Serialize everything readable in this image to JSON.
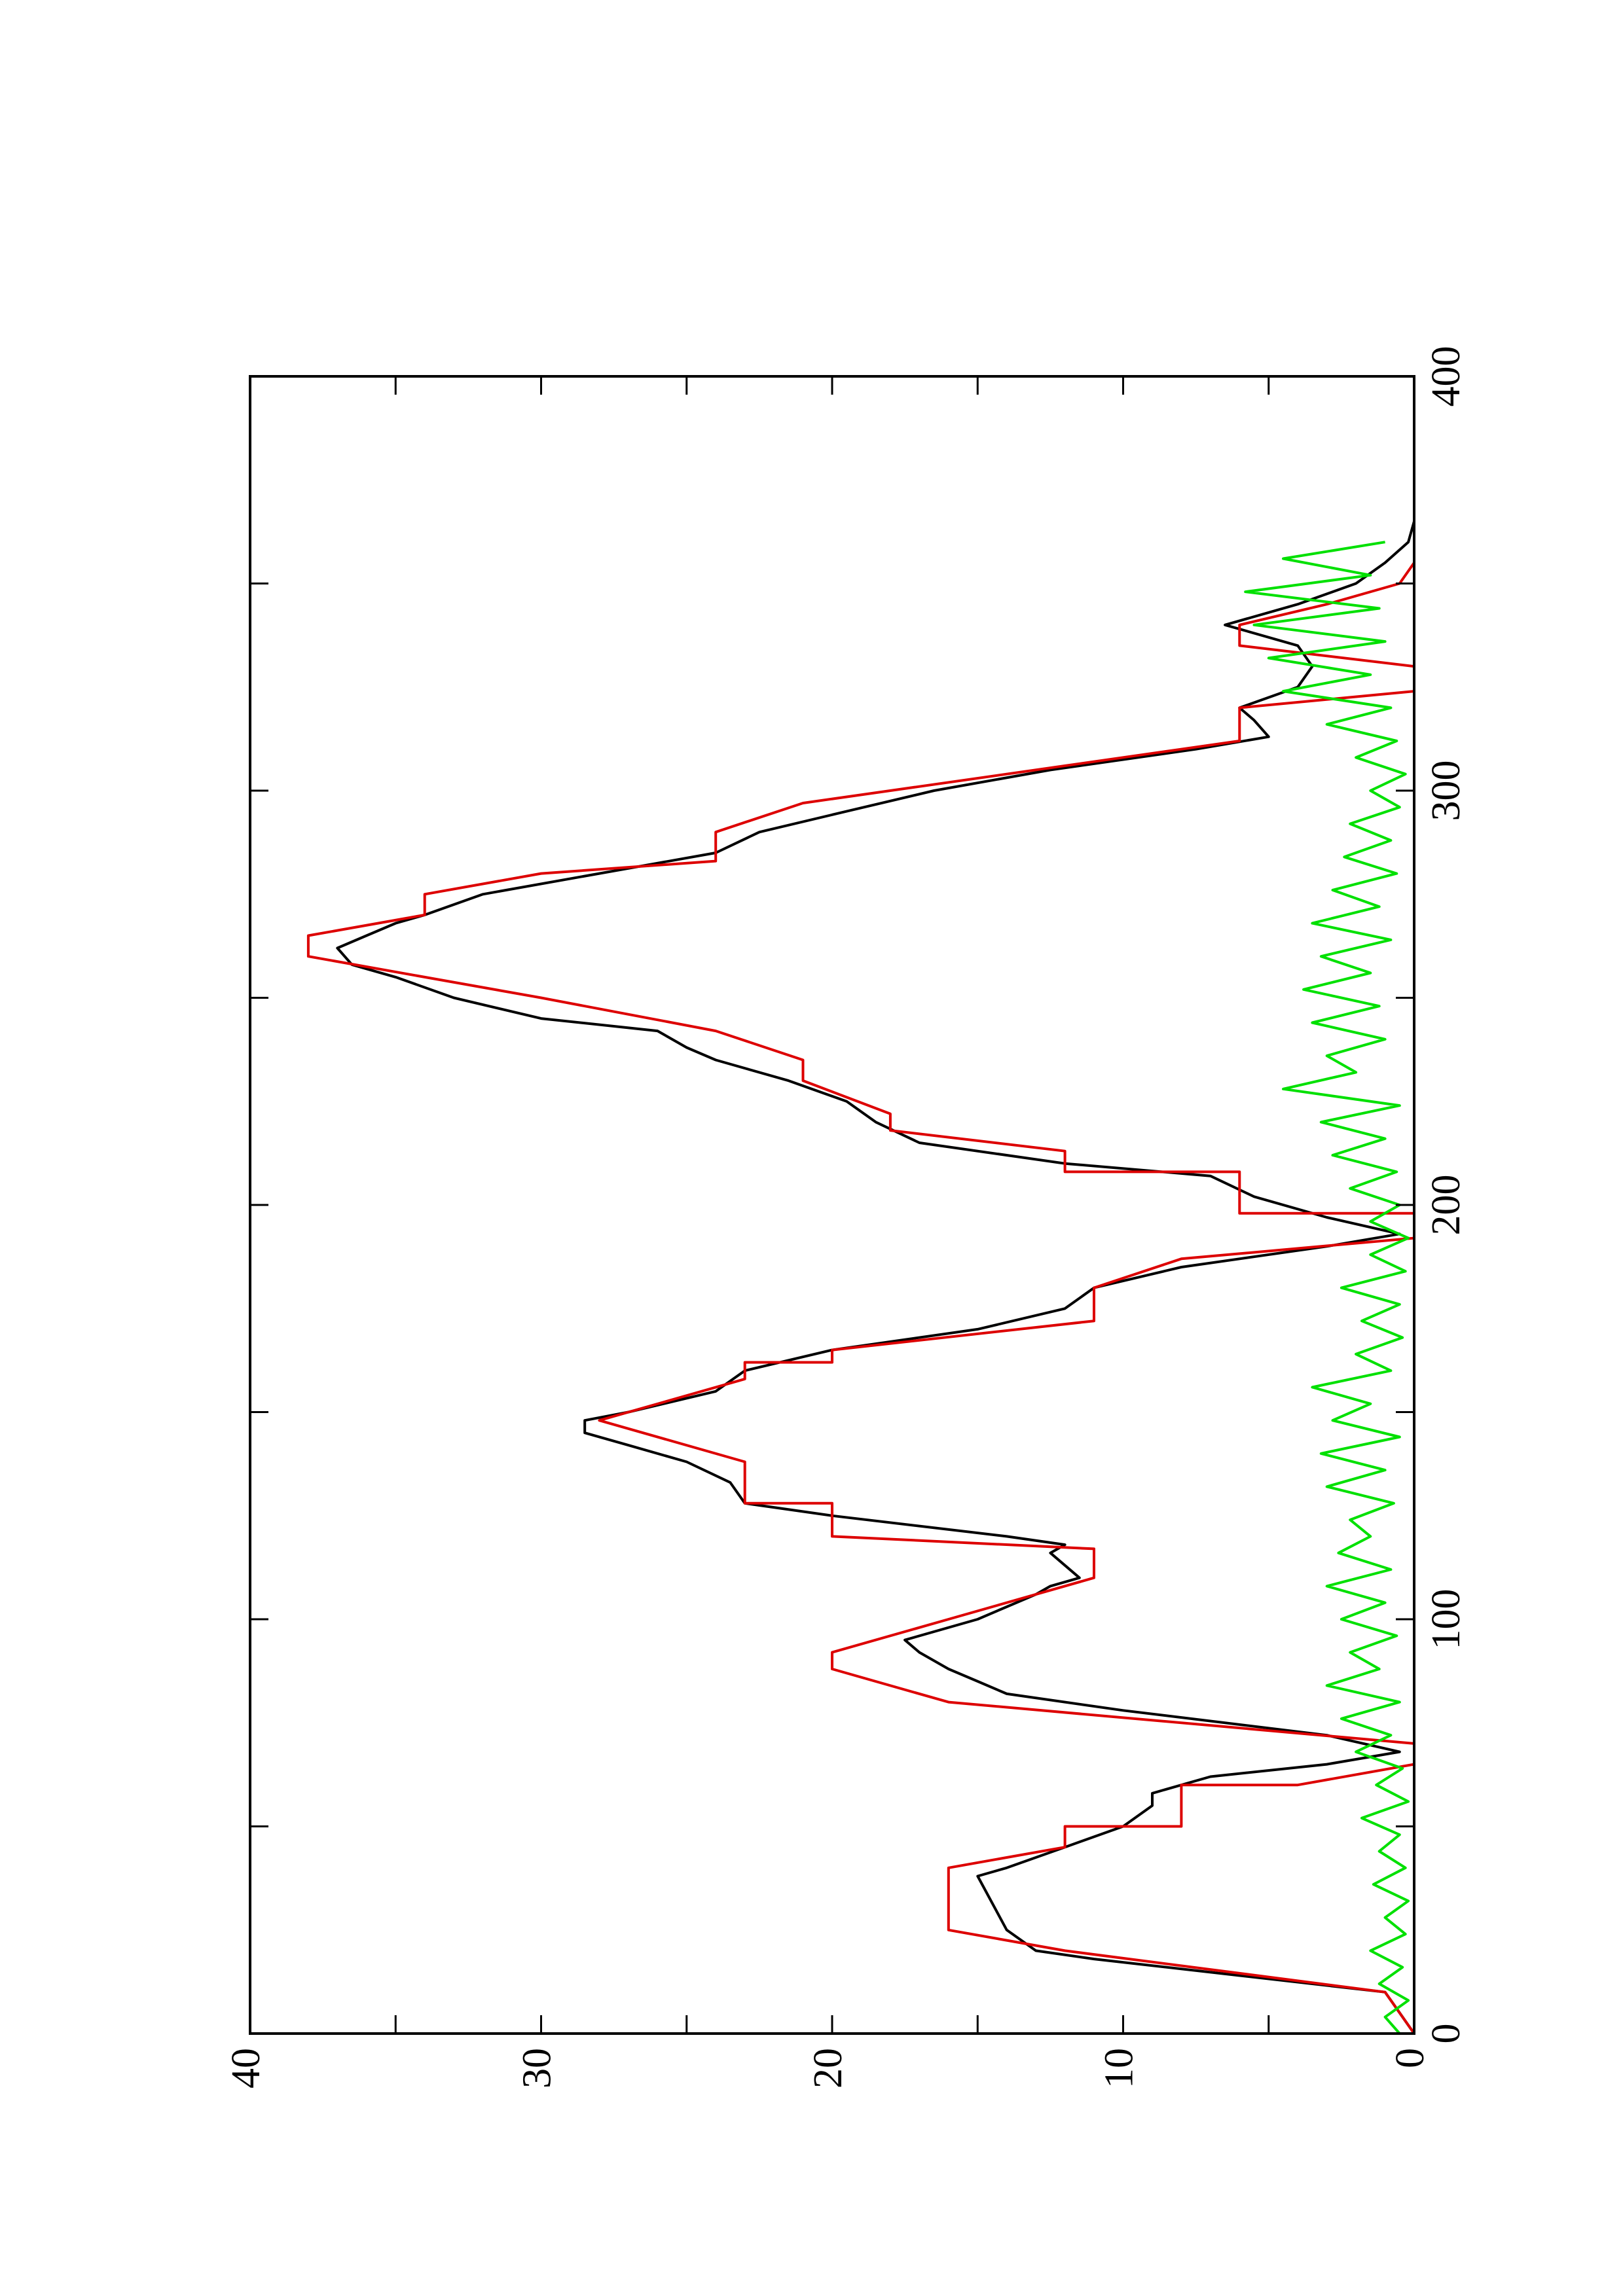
{
  "chart_data": {
    "type": "line",
    "orientation": "rotated 90 degrees counter-clockwise",
    "title": "",
    "xlabel": "",
    "ylabel": "",
    "xlim": [
      0,
      400
    ],
    "ylim": [
      0,
      40
    ],
    "x_ticks": [
      0,
      100,
      200,
      300,
      400
    ],
    "x_tick_labels": [
      "0",
      "100",
      "200",
      "300",
      "400"
    ],
    "y_ticks": [
      0,
      10,
      20,
      30,
      40
    ],
    "y_tick_labels": [
      "0",
      "10",
      "20",
      "30",
      "40"
    ],
    "grid": false,
    "legend": "none",
    "series": [
      {
        "color": "#000000",
        "x": [
          0,
          5,
          10,
          18,
          20,
          25,
          38,
          40,
          45,
          50,
          55,
          58,
          62,
          65,
          68,
          72,
          78,
          82,
          85,
          88,
          92,
          95,
          100,
          103,
          106,
          108,
          110,
          113,
          116,
          118,
          120,
          125,
          128,
          133,
          138,
          142,
          145,
          148,
          150,
          155,
          160,
          165,
          170,
          175,
          180,
          185,
          190,
          193,
          197,
          202,
          207,
          210,
          215,
          220,
          225,
          230,
          235,
          238,
          242,
          245,
          250,
          255,
          258,
          262,
          265,
          268,
          270,
          275,
          280,
          285,
          290,
          295,
          300,
          305,
          310,
          313,
          317,
          320,
          325,
          330,
          335,
          340,
          345,
          350,
          355,
          360,
          365
        ],
        "y": [
          0,
          0.5,
          1,
          11,
          13,
          14,
          15,
          14,
          12,
          10,
          9,
          9,
          7,
          3,
          0.5,
          3,
          10,
          14,
          15,
          16,
          17,
          17.5,
          15,
          14,
          13,
          12.5,
          11.5,
          12,
          12.5,
          12,
          14,
          20,
          23,
          23.5,
          25,
          27,
          28.5,
          28.5,
          27,
          24,
          23,
          20,
          15,
          12,
          11,
          8,
          3,
          0.5,
          3,
          5.5,
          7,
          12,
          17,
          18.5,
          19.5,
          21.5,
          24,
          25,
          26,
          30,
          33,
          35,
          36.5,
          37,
          36,
          35,
          34,
          32,
          28,
          24,
          22.5,
          19.5,
          16.5,
          12.5,
          7.5,
          5,
          5.5,
          6,
          4,
          3.5,
          4,
          6.5,
          4,
          2,
          1,
          0.2,
          0
        ]
      },
      {
        "color": "#dd0000",
        "x": [
          0,
          10,
          20,
          20,
          25,
          38,
          40,
          45,
          50,
          50,
          55,
          60,
          60,
          65,
          70,
          80,
          80,
          88,
          92,
          100,
          100,
          110,
          110,
          117,
          117,
          120,
          128,
          128,
          133,
          138,
          148,
          158,
          158,
          162,
          162,
          165,
          172,
          172,
          180,
          180,
          187,
          192,
          198,
          198,
          208,
          208,
          213,
          218,
          222,
          222,
          230,
          235,
          242,
          242,
          250,
          255,
          260,
          265,
          270,
          275,
          280,
          283,
          290,
          297,
          300,
          306,
          312,
          320,
          324,
          330,
          335,
          340,
          345,
          350,
          355
        ],
        "y": [
          0,
          1,
          12,
          12,
          16,
          16,
          16,
          12,
          12,
          8,
          8,
          8,
          4,
          0,
          0,
          16,
          16,
          20,
          20,
          16,
          16,
          11,
          11,
          11,
          11,
          20,
          20,
          23,
          23,
          23,
          28,
          23,
          23,
          23,
          20,
          20,
          11,
          11,
          11,
          11,
          8,
          0,
          0,
          6,
          6,
          12,
          12,
          18,
          18,
          18,
          21,
          21,
          24,
          24,
          30,
          34,
          38,
          38,
          34,
          34,
          30,
          24,
          24,
          21,
          18,
          12,
          6,
          6,
          0,
          0,
          6,
          6,
          3,
          0.5,
          0
        ]
      },
      {
        "color": "#00e000",
        "x": [
          0,
          4,
          8,
          12,
          16,
          20,
          24,
          28,
          32,
          36,
          40,
          44,
          48,
          52,
          56,
          60,
          64,
          68,
          72,
          76,
          80,
          84,
          88,
          92,
          96,
          100,
          104,
          108,
          112,
          116,
          120,
          124,
          128,
          132,
          136,
          140,
          144,
          148,
          152,
          156,
          160,
          164,
          168,
          172,
          176,
          180,
          184,
          188,
          192,
          196,
          200,
          204,
          208,
          212,
          216,
          220,
          224,
          228,
          232,
          236,
          240,
          244,
          248,
          252,
          256,
          260,
          264,
          268,
          272,
          276,
          280,
          284,
          288,
          292,
          296,
          300,
          304,
          308,
          312,
          316,
          320,
          324,
          328,
          332,
          336,
          340,
          344,
          348,
          352,
          356,
          360
        ],
        "y": [
          0.5,
          1,
          0.2,
          1.2,
          0.4,
          1.5,
          0.3,
          1,
          0.2,
          1.4,
          0.3,
          1.2,
          0.5,
          1.8,
          0.2,
          1.3,
          0.4,
          2,
          0.8,
          2.5,
          0.5,
          3,
          1.2,
          2.2,
          0.6,
          2.5,
          1,
          3,
          0.8,
          2.6,
          1.5,
          2.2,
          0.7,
          3,
          1,
          3.2,
          0.5,
          2.8,
          1.5,
          3.5,
          0.8,
          2,
          0.4,
          1.8,
          0.5,
          2.5,
          0.3,
          1.5,
          0.2,
          1.5,
          0.5,
          2.2,
          0.6,
          2.8,
          1,
          3.2,
          0.5,
          4.5,
          2,
          3,
          1,
          3.5,
          1.2,
          3.8,
          1.5,
          3.2,
          0.8,
          3.5,
          1.2,
          2.8,
          0.6,
          2.4,
          0.8,
          2.2,
          0.5,
          1.5,
          0.3,
          2,
          0.6,
          3,
          0.8,
          4.5,
          1.5,
          5,
          1,
          5.5,
          1.2,
          5.8,
          1.5,
          4.5,
          1
        ]
      }
    ]
  }
}
